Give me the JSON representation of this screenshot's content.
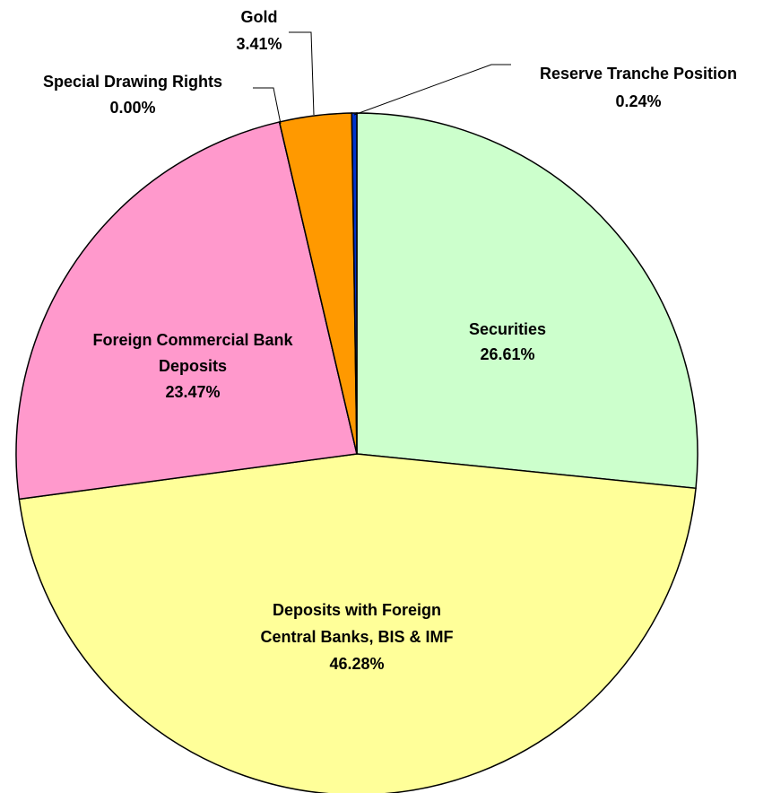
{
  "chart_data": {
    "type": "pie",
    "categories": [
      "Securities",
      "Deposits with Foreign\nCentral Banks,  BIS & IMF",
      "Foreign Commercial Bank\nDeposits",
      "Special Drawing Rights",
      "Gold",
      "Reserve Tranche Position"
    ],
    "values": [
      26.61,
      46.28,
      23.47,
      0.0,
      3.41,
      0.24
    ],
    "value_labels": [
      "26.61%",
      "46.28%",
      "23.47%",
      "0.00%",
      "3.41%",
      "0.24%"
    ],
    "colors": [
      "#ccffcc",
      "#ffff99",
      "#ff99cc",
      "#9999ff",
      "#ff9900",
      "#0033cc"
    ]
  }
}
